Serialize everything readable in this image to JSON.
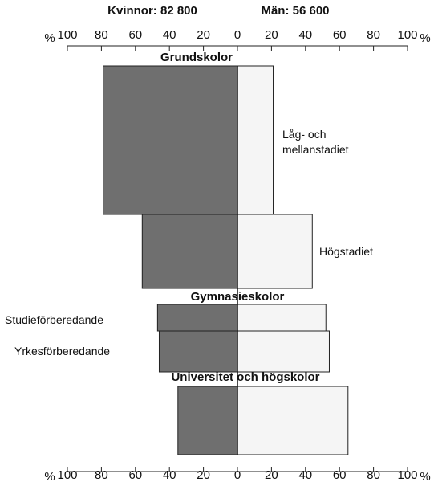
{
  "chart_data": {
    "type": "diverging-bar",
    "series": [
      {
        "name": "Kvinnor: 82 800",
        "side": "left",
        "color": "#6f6f6f",
        "values": [
          79,
          56,
          47,
          46,
          35
        ]
      },
      {
        "name": "Män: 56 600",
        "side": "right",
        "color": "#f5f5f5",
        "values": [
          21,
          44,
          52,
          54,
          65
        ]
      }
    ],
    "categories": [
      "Låg- och mellanstadiet",
      "Högstadiet",
      "Studieförberedande",
      "Yrkesförberedande",
      null
    ],
    "annotations": [
      "Grundskolor",
      "Gymnasieskolor",
      "Universitet och högskolor"
    ],
    "xlabel": "%",
    "xlim": [
      -100,
      100
    ],
    "xticks": [
      {
        "value": -100,
        "label": "100"
      },
      {
        "value": -80,
        "label": "80"
      },
      {
        "value": -60,
        "label": "60"
      },
      {
        "value": -40,
        "label": "40"
      },
      {
        "value": -20,
        "label": "20"
      },
      0,
      20,
      40,
      60,
      80,
      100
    ]
  }
}
